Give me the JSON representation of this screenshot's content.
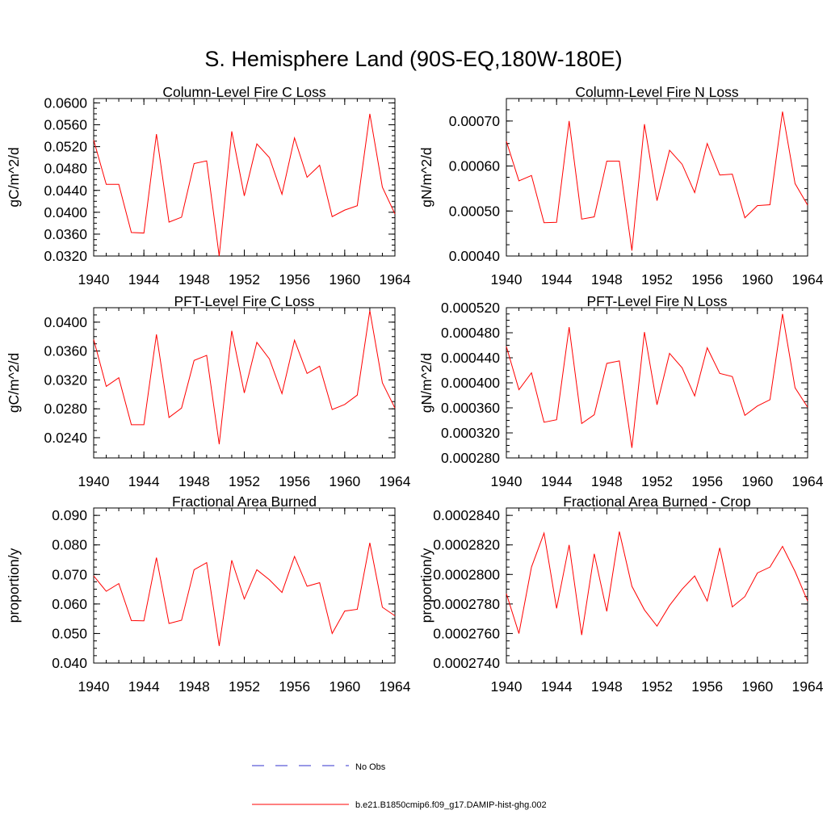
{
  "title": "S. Hemisphere Land (90S-EQ,180W-180E)",
  "colors": {
    "model": "#ff0000",
    "obs": "#3333cc",
    "axis": "#000000"
  },
  "legend": {
    "obs_label": "No Obs",
    "model_label": "b.e21.B1850cmip6.f09_g17.DAMIP-hist-ghg.002"
  },
  "chart_data": [
    {
      "type": "line",
      "title": "Column-Level Fire C Loss",
      "xlabel": "",
      "ylabel": "gC/m^2/d",
      "xlim": [
        1940,
        1964
      ],
      "ylim": [
        0.032,
        0.0608
      ],
      "x_ticks": [
        "1940",
        "1944",
        "1948",
        "1952",
        "1956",
        "1960",
        "1964"
      ],
      "y_ticks": [
        "0.0320",
        "0.0360",
        "0.0400",
        "0.0440",
        "0.0480",
        "0.0520",
        "0.0560",
        "0.0600"
      ],
      "x": [
        1940,
        1941,
        1942,
        1943,
        1944,
        1945,
        1946,
        1947,
        1948,
        1949,
        1950,
        1951,
        1952,
        1953,
        1954,
        1955,
        1956,
        1957,
        1958,
        1959,
        1960,
        1961,
        1962,
        1963,
        1964
      ],
      "series": [
        {
          "name": "b.e21.B1850cmip6.f09_g17.DAMIP-hist-ghg.002",
          "values": [
            0.0532,
            0.0451,
            0.0451,
            0.0363,
            0.0362,
            0.0543,
            0.0382,
            0.0391,
            0.0489,
            0.0494,
            0.032,
            0.0548,
            0.043,
            0.0525,
            0.05,
            0.0433,
            0.0536,
            0.0464,
            0.0486,
            0.0392,
            0.0404,
            0.0412,
            0.058,
            0.0446,
            0.0397
          ]
        }
      ]
    },
    {
      "type": "line",
      "title": "Column-Level Fire N Loss",
      "xlabel": "",
      "ylabel": "gN/m^2/d",
      "xlim": [
        1940,
        1964
      ],
      "ylim": [
        0.0004,
        0.00075
      ],
      "x_ticks": [
        "1940",
        "1944",
        "1948",
        "1952",
        "1956",
        "1960",
        "1964"
      ],
      "y_ticks": [
        "0.00040",
        "0.00050",
        "0.00060",
        "0.00070"
      ],
      "x": [
        1940,
        1941,
        1942,
        1943,
        1944,
        1945,
        1946,
        1947,
        1948,
        1949,
        1950,
        1951,
        1952,
        1953,
        1954,
        1955,
        1956,
        1957,
        1958,
        1959,
        1960,
        1961,
        1962,
        1963,
        1964
      ],
      "series": [
        {
          "name": "b.e21.B1850cmip6.f09_g17.DAMIP-hist-ghg.002",
          "values": [
            0.000655,
            0.000567,
            0.000579,
            0.000474,
            0.000475,
            0.0007,
            0.000482,
            0.000487,
            0.000611,
            0.000611,
            0.000412,
            0.000693,
            0.000523,
            0.000635,
            0.000604,
            0.000541,
            0.00065,
            0.00058,
            0.000582,
            0.000485,
            0.000512,
            0.000514,
            0.000721,
            0.000561,
            0.000513
          ]
        }
      ]
    },
    {
      "type": "line",
      "title": "PFT-Level Fire C Loss",
      "xlabel": "",
      "ylabel": "gC/m^2/d",
      "xlim": [
        1940,
        1964
      ],
      "ylim": [
        0.0212,
        0.042
      ],
      "x_ticks": [
        "1940",
        "1944",
        "1948",
        "1952",
        "1956",
        "1960",
        "1964"
      ],
      "y_ticks": [
        "0.0240",
        "0.0280",
        "0.0320",
        "0.0360",
        "0.0400"
      ],
      "x": [
        1940,
        1941,
        1942,
        1943,
        1944,
        1945,
        1946,
        1947,
        1948,
        1949,
        1950,
        1951,
        1952,
        1953,
        1954,
        1955,
        1956,
        1957,
        1958,
        1959,
        1960,
        1961,
        1962,
        1963,
        1964
      ],
      "series": [
        {
          "name": "b.e21.B1850cmip6.f09_g17.DAMIP-hist-ghg.002",
          "values": [
            0.0376,
            0.0311,
            0.0323,
            0.0258,
            0.0258,
            0.0383,
            0.0268,
            0.0281,
            0.0347,
            0.0354,
            0.0231,
            0.0388,
            0.0302,
            0.0372,
            0.0349,
            0.0301,
            0.0375,
            0.0329,
            0.0339,
            0.0279,
            0.0286,
            0.0299,
            0.0416,
            0.0316,
            0.0281
          ]
        }
      ]
    },
    {
      "type": "line",
      "title": "PFT-Level Fire N Loss",
      "xlabel": "",
      "ylabel": "gN/m^2/d",
      "xlim": [
        1940,
        1964
      ],
      "ylim": [
        0.00028,
        0.00052
      ],
      "x_ticks": [
        "1940",
        "1944",
        "1948",
        "1952",
        "1956",
        "1960",
        "1964"
      ],
      "y_ticks": [
        "0.000280",
        "0.000320",
        "0.000360",
        "0.000400",
        "0.000440",
        "0.000480",
        "0.000520"
      ],
      "x": [
        1940,
        1941,
        1942,
        1943,
        1944,
        1945,
        1946,
        1947,
        1948,
        1949,
        1950,
        1951,
        1952,
        1953,
        1954,
        1955,
        1956,
        1957,
        1958,
        1959,
        1960,
        1961,
        1962,
        1963,
        1964
      ],
      "series": [
        {
          "name": "b.e21.B1850cmip6.f09_g17.DAMIP-hist-ghg.002",
          "values": [
            0.000458,
            0.000389,
            0.000416,
            0.000337,
            0.000341,
            0.000489,
            0.000335,
            0.000349,
            0.000431,
            0.000435,
            0.000296,
            0.000481,
            0.000365,
            0.000447,
            0.000424,
            0.000379,
            0.000456,
            0.000415,
            0.00041,
            0.000348,
            0.000363,
            0.000373,
            0.00051,
            0.000392,
            0.000361
          ]
        }
      ]
    },
    {
      "type": "line",
      "title": "Fractional Area Burned",
      "xlabel": "",
      "ylabel": "proportion/y",
      "xlim": [
        1940,
        1964
      ],
      "ylim": [
        0.04,
        0.0925
      ],
      "x_ticks": [
        "1940",
        "1944",
        "1948",
        "1952",
        "1956",
        "1960",
        "1964"
      ],
      "y_ticks": [
        "0.040",
        "0.050",
        "0.060",
        "0.070",
        "0.080",
        "0.090"
      ],
      "x": [
        1940,
        1941,
        1942,
        1943,
        1944,
        1945,
        1946,
        1947,
        1948,
        1949,
        1950,
        1951,
        1952,
        1953,
        1954,
        1955,
        1956,
        1957,
        1958,
        1959,
        1960,
        1961,
        1962,
        1963,
        1964
      ],
      "series": [
        {
          "name": "b.e21.B1850cmip6.f09_g17.DAMIP-hist-ghg.002",
          "values": [
            0.0695,
            0.0643,
            0.0669,
            0.0544,
            0.0543,
            0.0757,
            0.0534,
            0.0545,
            0.0716,
            0.074,
            0.0458,
            0.0748,
            0.0617,
            0.0716,
            0.0682,
            0.0639,
            0.0761,
            0.066,
            0.0672,
            0.05,
            0.0576,
            0.0582,
            0.0807,
            0.0589,
            0.056
          ]
        }
      ]
    },
    {
      "type": "line",
      "title": "Fractional Area Burned - Crop",
      "xlabel": "",
      "ylabel": "proportion/y",
      "xlim": [
        1940,
        1964
      ],
      "ylim": [
        0.000274,
        0.0002845
      ],
      "x_ticks": [
        "1940",
        "1944",
        "1948",
        "1952",
        "1956",
        "1960",
        "1964"
      ],
      "y_ticks": [
        "0.0002740",
        "0.0002760",
        "0.0002780",
        "0.0002800",
        "0.0002820",
        "0.0002840"
      ],
      "x": [
        1940,
        1941,
        1942,
        1943,
        1944,
        1945,
        1946,
        1947,
        1948,
        1949,
        1950,
        1951,
        1952,
        1953,
        1954,
        1955,
        1956,
        1957,
        1958,
        1959,
        1960,
        1961,
        1962,
        1963,
        1964
      ],
      "series": [
        {
          "name": "b.e21.B1850cmip6.f09_g17.DAMIP-hist-ghg.002",
          "values": [
            0.0002787,
            0.000276,
            0.0002805,
            0.0002828,
            0.0002777,
            0.000282,
            0.0002759,
            0.0002814,
            0.0002775,
            0.0002829,
            0.0002792,
            0.0002776,
            0.0002765,
            0.0002779,
            0.000279,
            0.0002799,
            0.0002782,
            0.0002818,
            0.0002778,
            0.0002785,
            0.0002801,
            0.0002805,
            0.0002819,
            0.0002802,
            0.0002782
          ]
        }
      ]
    }
  ]
}
